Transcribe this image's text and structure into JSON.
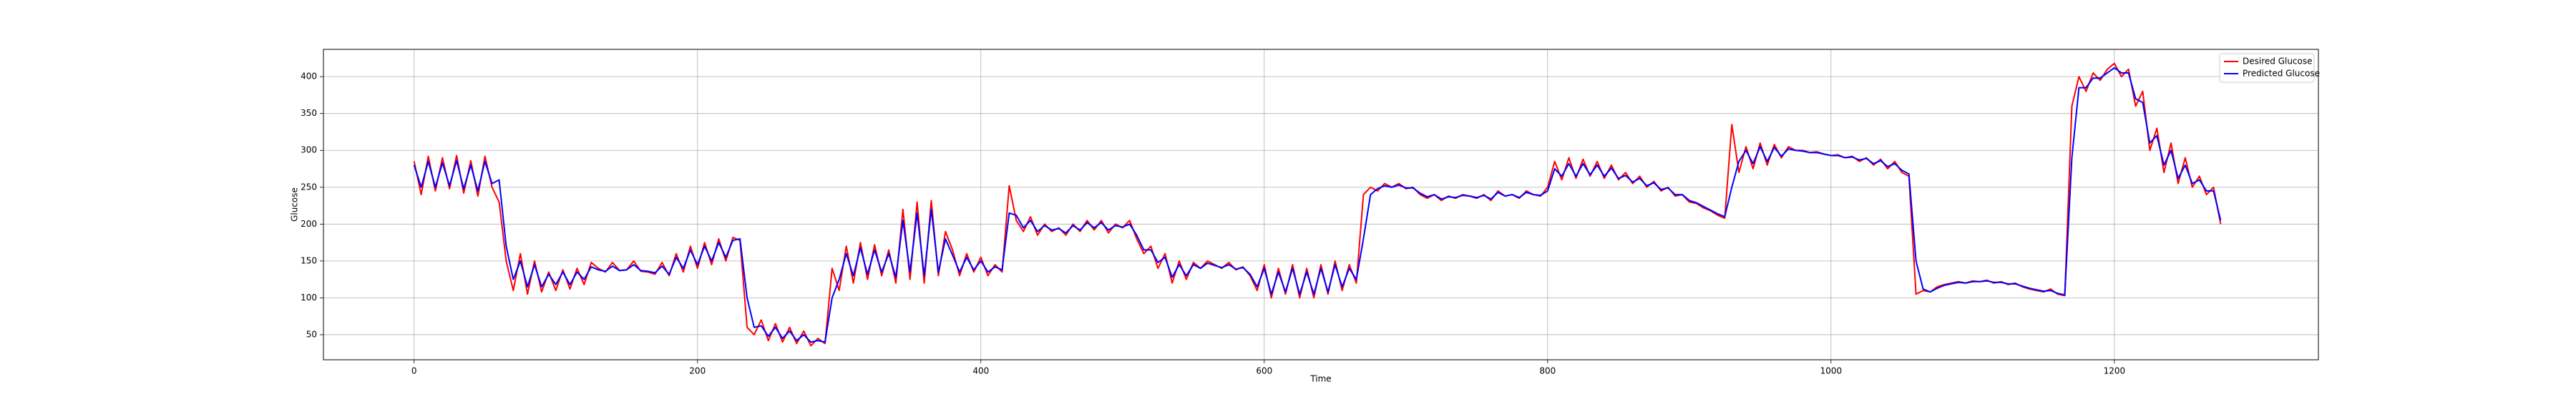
{
  "chart_data": {
    "type": "line",
    "x_label": "Time",
    "y_label": "Glucose",
    "x": [
      0,
      5,
      10,
      15,
      20,
      25,
      30,
      35,
      40,
      45,
      50,
      55,
      60,
      65,
      70,
      75,
      80,
      85,
      90,
      95,
      100,
      105,
      110,
      115,
      120,
      125,
      130,
      135,
      140,
      145,
      150,
      155,
      160,
      165,
      170,
      175,
      180,
      185,
      190,
      195,
      200,
      205,
      210,
      215,
      220,
      225,
      230,
      235,
      240,
      245,
      250,
      255,
      260,
      265,
      270,
      275,
      280,
      285,
      290,
      295,
      300,
      305,
      310,
      315,
      320,
      325,
      330,
      335,
      340,
      345,
      350,
      355,
      360,
      365,
      370,
      375,
      380,
      385,
      390,
      395,
      400,
      405,
      410,
      415,
      420,
      425,
      430,
      435,
      440,
      445,
      450,
      455,
      460,
      465,
      470,
      475,
      480,
      485,
      490,
      495,
      500,
      505,
      510,
      515,
      520,
      525,
      530,
      535,
      540,
      545,
      550,
      555,
      560,
      565,
      570,
      575,
      580,
      585,
      590,
      595,
      600,
      605,
      610,
      615,
      620,
      625,
      630,
      635,
      640,
      645,
      650,
      655,
      660,
      665,
      670,
      675,
      680,
      685,
      690,
      695,
      700,
      705,
      710,
      715,
      720,
      725,
      730,
      735,
      740,
      745,
      750,
      755,
      760,
      765,
      770,
      775,
      780,
      785,
      790,
      795,
      800,
      805,
      810,
      815,
      820,
      825,
      830,
      835,
      840,
      845,
      850,
      855,
      860,
      865,
      870,
      875,
      880,
      885,
      890,
      895,
      900,
      905,
      910,
      915,
      920,
      925,
      930,
      935,
      940,
      945,
      950,
      955,
      960,
      965,
      970,
      975,
      980,
      985,
      990,
      995,
      1000,
      1005,
      1010,
      1015,
      1020,
      1025,
      1030,
      1035,
      1040,
      1045,
      1050,
      1055,
      1060,
      1065,
      1070,
      1075,
      1080,
      1085,
      1090,
      1095,
      1100,
      1105,
      1110,
      1115,
      1120,
      1125,
      1130,
      1135,
      1140,
      1145,
      1150,
      1155,
      1160,
      1165,
      1170,
      1175,
      1180,
      1185,
      1190,
      1195,
      1200,
      1205,
      1210,
      1215,
      1220,
      1225,
      1230,
      1235,
      1240,
      1245,
      1250,
      1255,
      1260,
      1265,
      1270,
      1275
    ],
    "series": [
      {
        "name": "Desired Glucose",
        "color": "#ff0000",
        "values": [
          285,
          240,
          292,
          245,
          290,
          248,
          293,
          242,
          286,
          238,
          292,
          250,
          230,
          150,
          110,
          160,
          105,
          150,
          108,
          135,
          110,
          138,
          112,
          140,
          118,
          148,
          140,
          135,
          148,
          137,
          138,
          150,
          136,
          135,
          132,
          148,
          130,
          160,
          135,
          170,
          140,
          175,
          145,
          180,
          150,
          182,
          178,
          60,
          50,
          70,
          42,
          65,
          40,
          60,
          38,
          55,
          35,
          45,
          38,
          140,
          110,
          170,
          120,
          175,
          125,
          172,
          130,
          165,
          120,
          220,
          125,
          230,
          120,
          232,
          130,
          190,
          165,
          130,
          160,
          135,
          155,
          130,
          145,
          135,
          252,
          205,
          190,
          210,
          185,
          200,
          190,
          195,
          185,
          200,
          190,
          205,
          192,
          205,
          188,
          200,
          195,
          205,
          180,
          160,
          170,
          140,
          160,
          120,
          150,
          125,
          148,
          140,
          150,
          145,
          140,
          148,
          138,
          142,
          130,
          110,
          145,
          100,
          140,
          105,
          145,
          100,
          140,
          100,
          145,
          105,
          150,
          110,
          145,
          120,
          240,
          250,
          245,
          255,
          250,
          255,
          248,
          250,
          240,
          235,
          240,
          232,
          238,
          235,
          240,
          238,
          235,
          240,
          232,
          245,
          238,
          240,
          235,
          245,
          240,
          238,
          250,
          285,
          260,
          290,
          262,
          288,
          265,
          285,
          262,
          280,
          260,
          270,
          255,
          265,
          250,
          258,
          245,
          250,
          238,
          240,
          230,
          228,
          222,
          218,
          212,
          208,
          335,
          270,
          305,
          275,
          310,
          280,
          308,
          290,
          305,
          300,
          300,
          297,
          298,
          295,
          293,
          294,
          290,
          292,
          285,
          290,
          280,
          288,
          275,
          285,
          270,
          265,
          105,
          110,
          108,
          115,
          118,
          120,
          122,
          120,
          123,
          122,
          124,
          120,
          122,
          118,
          120,
          115,
          112,
          110,
          108,
          112,
          105,
          103,
          360,
          400,
          380,
          405,
          395,
          410,
          418,
          400,
          410,
          360,
          380,
          300,
          330,
          270,
          310,
          255,
          290,
          250,
          265,
          240,
          250,
          200
        ]
      },
      {
        "name": "Predicted Glucose",
        "color": "#0000ff",
        "values": [
          280,
          250,
          285,
          250,
          283,
          252,
          286,
          248,
          280,
          245,
          285,
          255,
          260,
          170,
          125,
          150,
          115,
          145,
          115,
          132,
          118,
          135,
          118,
          135,
          125,
          142,
          138,
          136,
          143,
          137,
          138,
          145,
          137,
          136,
          134,
          143,
          132,
          155,
          140,
          165,
          145,
          170,
          150,
          175,
          155,
          178,
          180,
          100,
          60,
          62,
          48,
          60,
          45,
          55,
          42,
          50,
          40,
          42,
          40,
          100,
          125,
          160,
          130,
          168,
          132,
          165,
          135,
          160,
          128,
          205,
          135,
          215,
          130,
          220,
          135,
          180,
          158,
          135,
          155,
          138,
          150,
          135,
          142,
          138,
          215,
          212,
          195,
          205,
          190,
          198,
          192,
          194,
          188,
          198,
          192,
          202,
          195,
          202,
          192,
          198,
          196,
          200,
          185,
          165,
          165,
          148,
          155,
          128,
          145,
          130,
          145,
          140,
          147,
          144,
          141,
          145,
          139,
          141,
          132,
          115,
          140,
          105,
          135,
          108,
          140,
          105,
          135,
          105,
          140,
          108,
          145,
          115,
          140,
          125,
          180,
          240,
          248,
          252,
          250,
          253,
          249,
          249,
          242,
          237,
          240,
          234,
          237,
          236,
          239,
          238,
          236,
          239,
          234,
          243,
          238,
          240,
          236,
          243,
          240,
          239,
          245,
          275,
          265,
          282,
          265,
          282,
          267,
          280,
          265,
          276,
          262,
          266,
          257,
          262,
          252,
          256,
          247,
          249,
          240,
          240,
          232,
          229,
          224,
          219,
          214,
          210,
          250,
          285,
          300,
          282,
          305,
          285,
          304,
          292,
          302,
          300,
          299,
          297,
          297,
          295,
          293,
          293,
          290,
          291,
          287,
          289,
          282,
          286,
          278,
          282,
          273,
          268,
          150,
          112,
          108,
          113,
          117,
          119,
          121,
          120,
          122,
          122,
          123,
          121,
          121,
          119,
          119,
          116,
          113,
          111,
          109,
          110,
          106,
          104,
          290,
          385,
          385,
          398,
          398,
          405,
          412,
          405,
          405,
          370,
          365,
          310,
          320,
          280,
          300,
          262,
          280,
          255,
          260,
          245,
          245,
          205
        ]
      }
    ],
    "xlim": [
      -64,
      1344
    ],
    "ylim": [
      16,
      437
    ],
    "xticks": [
      0,
      200,
      400,
      600,
      800,
      1000,
      1200
    ],
    "yticks": [
      50,
      100,
      150,
      200,
      250,
      300,
      350,
      400
    ],
    "grid": true,
    "legend": "upper right"
  }
}
